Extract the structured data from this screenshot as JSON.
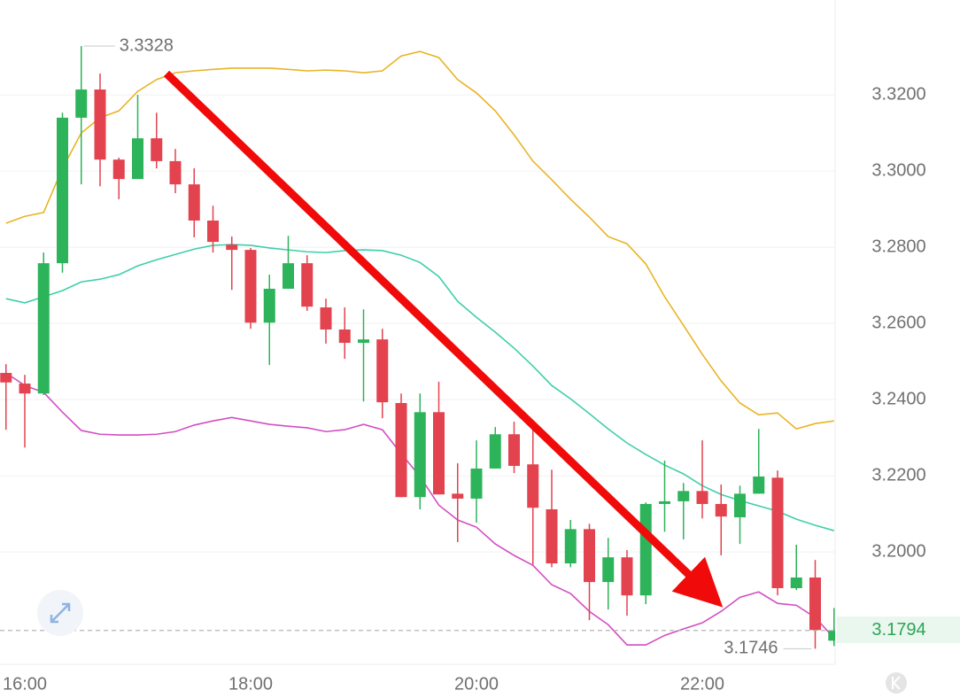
{
  "chart_data": {
    "type": "candlestick",
    "categories": [
      null,
      "16:00",
      null,
      null,
      null,
      null,
      null,
      null,
      null,
      null,
      null,
      null,
      null,
      "18:00",
      null,
      null,
      null,
      null,
      null,
      null,
      null,
      null,
      null,
      null,
      null,
      "20:00",
      null,
      null,
      null,
      null,
      null,
      null,
      null,
      null,
      null,
      null,
      null,
      "22:00",
      null,
      null,
      null,
      null,
      null,
      null,
      null
    ],
    "open": [
      3.247,
      3.2442,
      3.2416,
      3.2758,
      3.314,
      3.3214,
      3.303,
      3.2979,
      3.3086,
      3.3026,
      3.2965,
      3.287,
      3.2807,
      3.2793,
      3.2602,
      3.2691,
      3.2758,
      3.2642,
      3.2584,
      3.2549,
      3.2558,
      3.2391,
      3.2144,
      3.2367,
      3.2153,
      3.214,
      3.2219,
      3.2309,
      3.223,
      3.2112,
      3.197,
      3.206,
      3.1921,
      3.1986,
      3.1886,
      3.2126,
      3.2133,
      3.216,
      3.2126,
      3.2091,
      3.2153,
      3.2195,
      3.1905,
      3.1933,
      3.1767
    ],
    "high": [
      3.2493,
      3.2465,
      3.2786,
      3.3153,
      3.3328,
      3.3256,
      3.3035,
      3.32,
      3.3153,
      3.3058,
      3.3007,
      3.2909,
      3.2828,
      3.2798,
      3.2728,
      3.283,
      3.2779,
      3.2665,
      3.2642,
      3.2637,
      3.2586,
      3.2416,
      3.2416,
      3.2447,
      3.2233,
      3.2293,
      3.2328,
      3.2342,
      3.233,
      3.2216,
      3.2084,
      3.2074,
      3.2037,
      3.2005,
      3.213,
      3.224,
      3.2181,
      3.2293,
      3.2177,
      3.2174,
      3.2323,
      3.2214,
      3.2019,
      3.1979,
      3.1853
    ],
    "low": [
      3.2321,
      3.2274,
      3.2412,
      3.2733,
      3.2965,
      3.296,
      3.2926,
      3.2979,
      3.3007,
      3.2942,
      3.2826,
      3.2786,
      3.2688,
      3.2586,
      3.2491,
      3.2691,
      3.2633,
      3.2547,
      3.2507,
      3.2395,
      3.2351,
      3.2144,
      3.2112,
      3.2151,
      3.2026,
      3.2077,
      3.2219,
      3.2207,
      3.1967,
      3.196,
      3.196,
      3.1821,
      3.1849,
      3.1833,
      3.1863,
      3.2053,
      3.2033,
      3.2088,
      3.1991,
      3.2021,
      3.2153,
      3.1886,
      3.19,
      3.1746,
      3.1753
    ],
    "close": [
      3.2445,
      3.2416,
      3.2758,
      3.314,
      3.3214,
      3.303,
      3.2979,
      3.3086,
      3.3026,
      3.2965,
      3.287,
      3.2814,
      3.2793,
      3.2602,
      3.2691,
      3.2758,
      3.2644,
      3.2584,
      3.2549,
      3.2558,
      3.2393,
      3.2144,
      3.2367,
      3.2151,
      3.214,
      3.2219,
      3.2309,
      3.2226,
      3.2116,
      3.197,
      3.206,
      3.1921,
      3.1986,
      3.1886,
      3.2126,
      3.2133,
      3.216,
      3.2126,
      3.2093,
      3.2153,
      3.2198,
      3.1905,
      3.1933,
      3.1795,
      3.1794
    ],
    "up_color": "#2db35a",
    "down_color": "#e2434f",
    "overlays": [
      {
        "color": "#e9b424",
        "values": [
          3.2863,
          3.2881,
          3.2891,
          3.3007,
          3.31,
          3.314,
          3.3158,
          3.3209,
          3.324,
          3.3258,
          3.3263,
          3.3267,
          3.327,
          3.327,
          3.327,
          3.3267,
          3.3263,
          3.3265,
          3.3263,
          3.3258,
          3.3263,
          3.3302,
          3.3314,
          3.3298,
          3.324,
          3.3205,
          3.3158,
          3.3095,
          3.3026,
          3.2977,
          3.2926,
          3.2879,
          3.2828,
          3.2809,
          3.2756,
          3.267,
          3.2595,
          3.2519,
          3.2449,
          3.2391,
          3.236,
          3.2365,
          3.2323,
          3.2337,
          3.2344
        ]
      },
      {
        "color": "#3fcfa9",
        "values": [
          3.2665,
          3.2654,
          3.267,
          3.2686,
          3.2709,
          3.2716,
          3.2728,
          3.2751,
          3.2767,
          3.2781,
          3.2795,
          3.2805,
          3.2807,
          3.2805,
          3.2798,
          3.2793,
          3.2788,
          3.2786,
          3.2791,
          3.2793,
          3.2791,
          3.2779,
          3.276,
          3.2723,
          3.2658,
          3.2616,
          3.2577,
          3.2535,
          3.2488,
          3.2437,
          3.2402,
          3.2363,
          3.2323,
          3.2286,
          3.2256,
          3.2228,
          3.2205,
          3.2174,
          3.2151,
          3.2135,
          3.2121,
          3.2107,
          3.2086,
          3.207,
          3.2056
        ]
      },
      {
        "color": "#d24fc3",
        "values": [
          3.247,
          3.2437,
          3.2419,
          3.2367,
          3.2319,
          3.2309,
          3.2307,
          3.2307,
          3.2309,
          3.2316,
          3.2333,
          3.2344,
          3.2353,
          3.2344,
          3.2335,
          3.233,
          3.2326,
          3.2316,
          3.2321,
          3.2335,
          3.2321,
          3.2258,
          3.2198,
          3.2123,
          3.2084,
          3.2065,
          3.2021,
          3.1991,
          3.1965,
          3.1914,
          3.1891,
          3.1844,
          3.1809,
          3.1756,
          3.1756,
          3.1781,
          3.1798,
          3.1814,
          3.1844,
          3.1881,
          3.1895,
          3.1865,
          3.186,
          3.1828,
          3.1774
        ]
      }
    ],
    "ylim": [
      3.1705,
      3.3449
    ],
    "yticks": [
      {
        "value": 3.32,
        "label": "3.3200"
      },
      {
        "value": 3.3,
        "label": "3.3000"
      },
      {
        "value": 3.28,
        "label": "3.2800"
      },
      {
        "value": 3.26,
        "label": "3.2600"
      },
      {
        "value": 3.24,
        "label": "3.2400"
      },
      {
        "value": 3.22,
        "label": "3.2200"
      },
      {
        "value": 3.2,
        "label": "3.2000"
      }
    ],
    "grid": true,
    "high_marker": 3.3328,
    "low_marker": 3.1746,
    "last_price": 3.1794
  }
}
